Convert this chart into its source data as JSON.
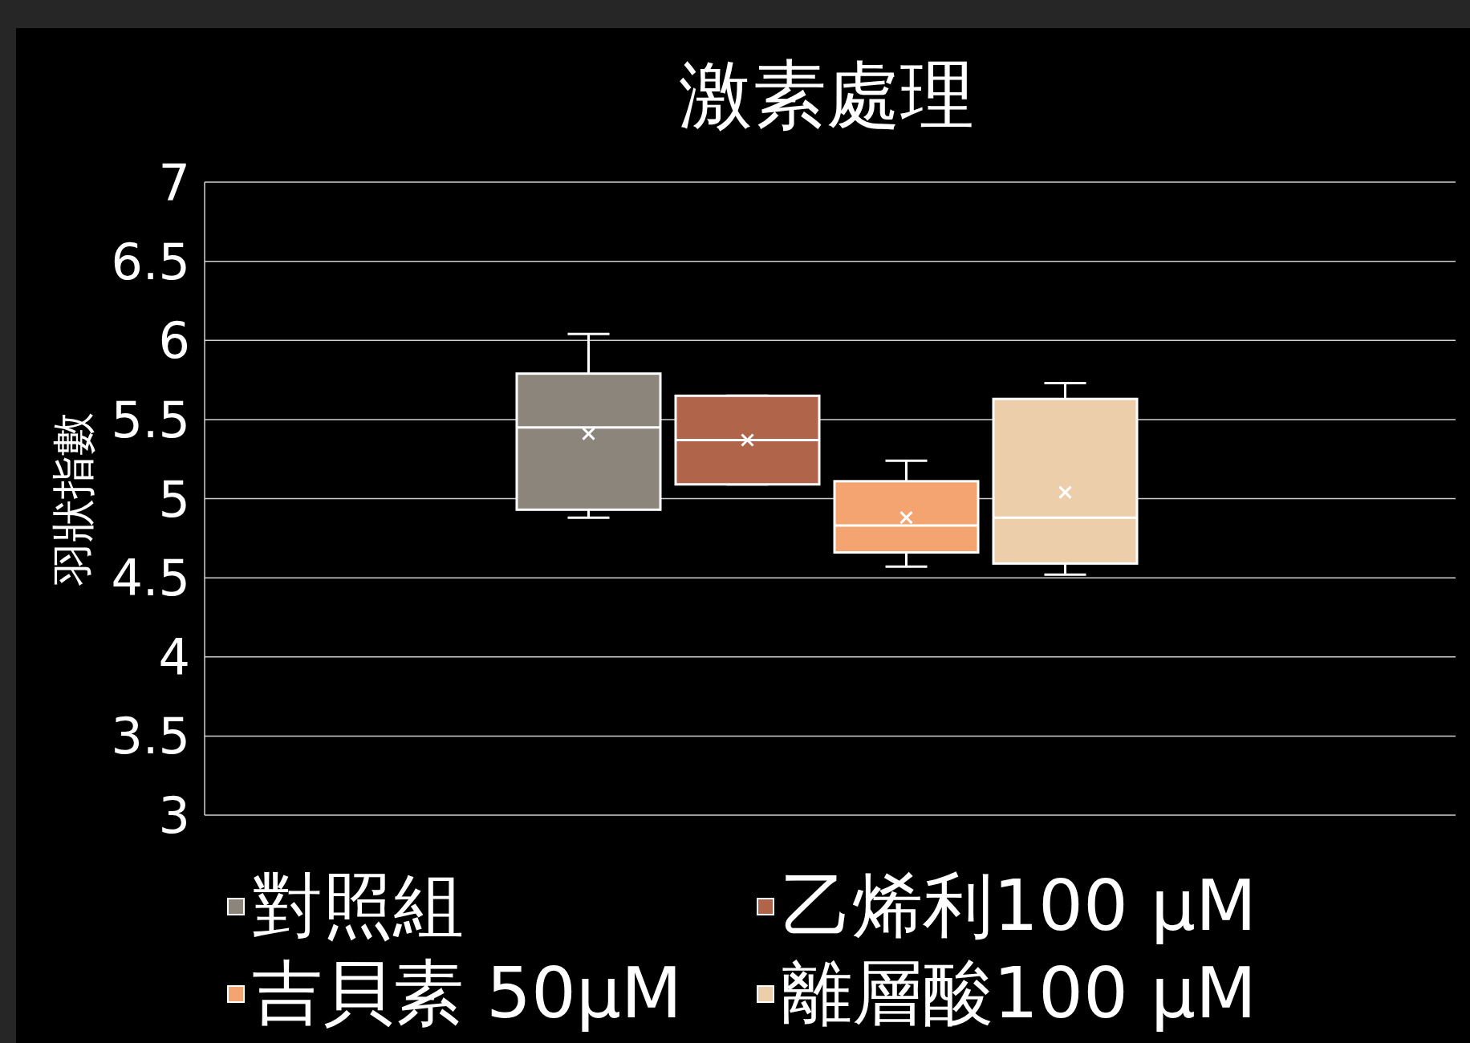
{
  "chart_data": {
    "type": "box",
    "title": "激素處理",
    "ylabel": "羽狀指數",
    "categories": [
      null
    ],
    "ylim": [
      3,
      7
    ],
    "yticks": [
      3,
      3.5,
      4,
      4.5,
      5,
      5.5,
      6,
      6.5,
      7
    ],
    "grid": "y",
    "legend": "bottom",
    "series": [
      {
        "name": "對照組",
        "color": "#8c857b",
        "boxes": [
          {
            "low": 4.88,
            "q1": 4.93,
            "median": 5.45,
            "q3": 5.79,
            "high": 6.04,
            "mean": 5.41
          }
        ]
      },
      {
        "name": "乙烯利100 µM",
        "color": "#b0654b",
        "boxes": [
          {
            "low": 5.09,
            "q1": 5.09,
            "median": 5.37,
            "q3": 5.65,
            "high": 5.65,
            "mean": 5.37
          }
        ]
      },
      {
        "name": "吉貝素 50µM",
        "color": "#f4a470",
        "boxes": [
          {
            "low": 4.57,
            "q1": 4.66,
            "median": 4.83,
            "q3": 5.11,
            "high": 5.24,
            "mean": 4.88
          }
        ]
      },
      {
        "name": "離層酸100 µM",
        "color": "#edceaa",
        "boxes": [
          {
            "low": 4.52,
            "q1": 4.59,
            "median": 4.88,
            "q3": 5.63,
            "high": 5.73,
            "mean": 5.04
          }
        ]
      }
    ]
  }
}
